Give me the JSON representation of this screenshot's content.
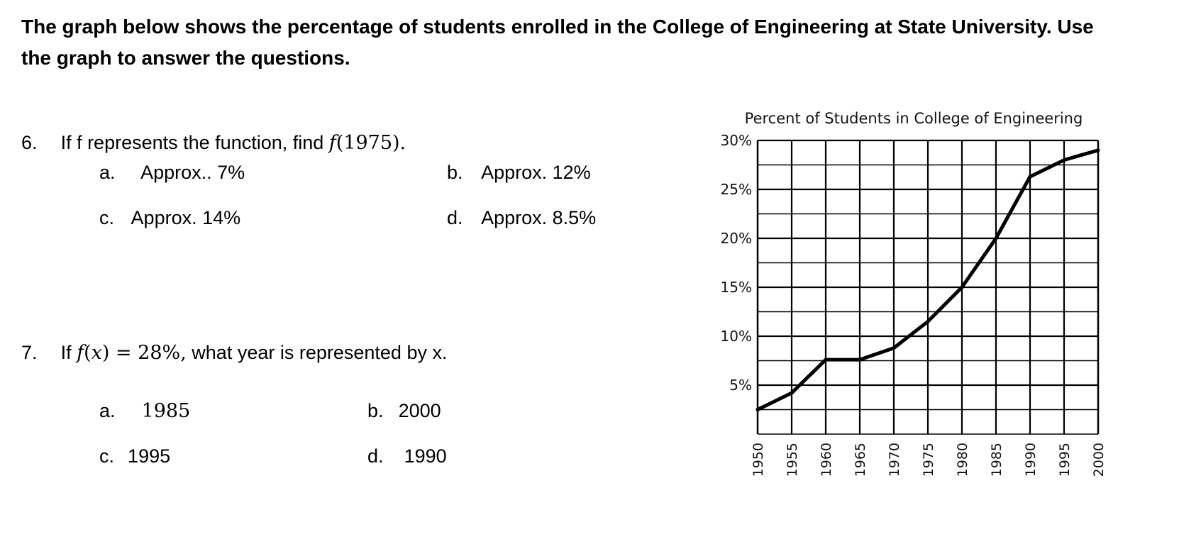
{
  "intro": {
    "line1": "The graph below shows the percentage of students enrolled in the College of Engineering at State University. Use",
    "line2": "the graph to answer the questions."
  },
  "q6": {
    "number": "6.",
    "text": "If f represents the function, find ",
    "func": "f",
    "arg": "(1975).",
    "options": [
      {
        "letter": "a.",
        "text": "Approx.. 7%"
      },
      {
        "letter": "b.",
        "text": "Approx. 12%"
      },
      {
        "letter": "c.",
        "text": "Approx. 14%"
      },
      {
        "letter": "d.",
        "text": "Approx. 8.5%"
      }
    ]
  },
  "q7": {
    "number": "7.",
    "prefix": "If ",
    "func": "f",
    "open": "(",
    "var": "x",
    "close_eq": ") = 28%,",
    "suffix": " what year is represented by x.",
    "options": [
      {
        "letter": "a.",
        "text": "1985"
      },
      {
        "letter": "b.",
        "text": "2000"
      },
      {
        "letter": "c.",
        "text": "1995"
      },
      {
        "letter": "d.",
        "text": "1990"
      }
    ]
  },
  "chart_data": {
    "type": "line",
    "title": "Percent of Students in College of Engineering",
    "x_ticks": [
      "1950",
      "1955",
      "1960",
      "1965",
      "1970",
      "1975",
      "1980",
      "1985",
      "1990",
      "1995",
      "2000"
    ],
    "y_ticks": [
      "5%",
      "10%",
      "15%",
      "20%",
      "25%",
      "30%"
    ],
    "ylim": [
      0,
      30
    ],
    "xlim": [
      1950,
      2000
    ],
    "grid": true,
    "series": [
      {
        "x": [
          1950,
          1955,
          1960,
          1965,
          1970,
          1975,
          1980,
          1985,
          1990,
          1995,
          2000
        ],
        "y": [
          2.5,
          4.2,
          7.6,
          7.6,
          8.8,
          11.5,
          15.0,
          20.0,
          26.3,
          28.0,
          29.0
        ]
      }
    ]
  }
}
